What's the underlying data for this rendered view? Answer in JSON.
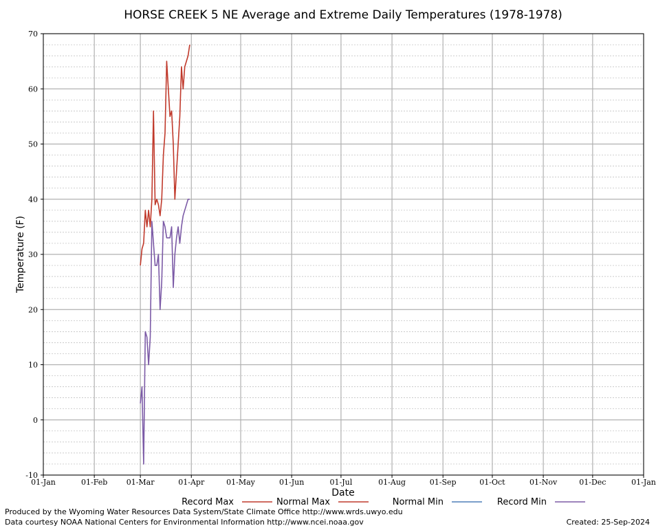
{
  "chart_data": {
    "type": "line",
    "title": "HORSE CREEK 5 NE Average and Extreme Daily Temperatures (1978-1978)",
    "xlabel": "Date",
    "ylabel": "Temperature (F)",
    "ylim": [
      -10,
      70
    ],
    "yticks": [
      -10,
      0,
      10,
      20,
      30,
      40,
      50,
      60,
      70
    ],
    "xticks": [
      "01-Jan",
      "01-Feb",
      "01-Mar",
      "01-Apr",
      "01-May",
      "01-Jun",
      "01-Jul",
      "01-Aug",
      "01-Sep",
      "01-Oct",
      "01-Nov",
      "01-Dec",
      "01-Jan"
    ],
    "xaxis": "day of year (Jan 1 to next Jan 1)",
    "grid": true,
    "legend_position": "bottom",
    "series": [
      {
        "name": "Record Max",
        "color": "#c0392b",
        "points": [
          [
            "01-Mar",
            28
          ],
          [
            "02-Mar",
            31
          ],
          [
            "03-Mar",
            32
          ],
          [
            "04-Mar",
            38
          ],
          [
            "05-Mar",
            35
          ],
          [
            "06-Mar",
            38
          ],
          [
            "07-Mar",
            35
          ],
          [
            "08-Mar",
            40
          ],
          [
            "09-Mar",
            56
          ],
          [
            "10-Mar",
            39
          ],
          [
            "11-Mar",
            40
          ],
          [
            "12-Mar",
            39
          ],
          [
            "13-Mar",
            37
          ],
          [
            "14-Mar",
            40
          ],
          [
            "15-Mar",
            48
          ],
          [
            "16-Mar",
            52
          ],
          [
            "17-Mar",
            65
          ],
          [
            "18-Mar",
            60
          ],
          [
            "19-Mar",
            55
          ],
          [
            "20-Mar",
            56
          ],
          [
            "21-Mar",
            50
          ],
          [
            "22-Mar",
            40
          ],
          [
            "23-Mar",
            45
          ],
          [
            "24-Mar",
            50
          ],
          [
            "25-Mar",
            55
          ],
          [
            "26-Mar",
            64
          ],
          [
            "27-Mar",
            60
          ],
          [
            "28-Mar",
            64
          ],
          [
            "29-Mar",
            65
          ],
          [
            "30-Mar",
            66
          ],
          [
            "31-Mar",
            68
          ]
        ]
      },
      {
        "name": "Normal Max",
        "color": "#c0392b",
        "points": []
      },
      {
        "name": "Normal Min",
        "color": "#4f7fb8",
        "points": []
      },
      {
        "name": "Record Min",
        "color": "#7b5aa6",
        "points": [
          [
            "01-Mar",
            3
          ],
          [
            "02-Mar",
            6
          ],
          [
            "03-Mar",
            -8
          ],
          [
            "04-Mar",
            16
          ],
          [
            "05-Mar",
            15
          ],
          [
            "06-Mar",
            10
          ],
          [
            "07-Mar",
            15
          ],
          [
            "08-Mar",
            36
          ],
          [
            "09-Mar",
            32
          ],
          [
            "10-Mar",
            28
          ],
          [
            "11-Mar",
            28
          ],
          [
            "12-Mar",
            30
          ],
          [
            "13-Mar",
            20
          ],
          [
            "14-Mar",
            25
          ],
          [
            "15-Mar",
            36
          ],
          [
            "16-Mar",
            35
          ],
          [
            "17-Mar",
            33
          ],
          [
            "18-Mar",
            33
          ],
          [
            "19-Mar",
            33
          ],
          [
            "20-Mar",
            35
          ],
          [
            "21-Mar",
            24
          ],
          [
            "22-Mar",
            30
          ],
          [
            "23-Mar",
            33
          ],
          [
            "24-Mar",
            35
          ],
          [
            "25-Mar",
            32
          ],
          [
            "26-Mar",
            35
          ],
          [
            "27-Mar",
            37
          ],
          [
            "28-Mar",
            38
          ],
          [
            "29-Mar",
            39
          ],
          [
            "30-Mar",
            40
          ],
          [
            "31-Mar",
            40
          ]
        ]
      }
    ]
  },
  "footer": {
    "line1": "Produced by the Wyoming Water Resources Data System/State Climate Office http://www.wrds.uwyo.edu",
    "line2": "Data courtesy NOAA National Centers for Environmental Information http://www.ncei.noaa.gov",
    "created": "Created:  25-Sep-2024"
  }
}
